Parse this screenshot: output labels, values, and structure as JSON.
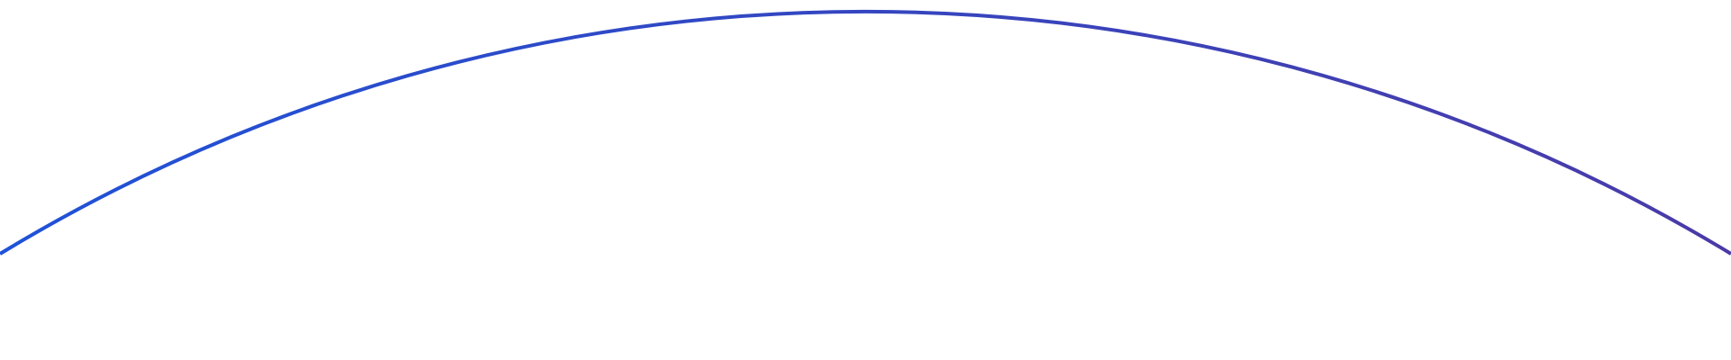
{
  "shape": {
    "type": "arc",
    "gradient_start": "#1f52d8",
    "gradient_end": "#4a3aa8",
    "background": "#ffffff"
  }
}
